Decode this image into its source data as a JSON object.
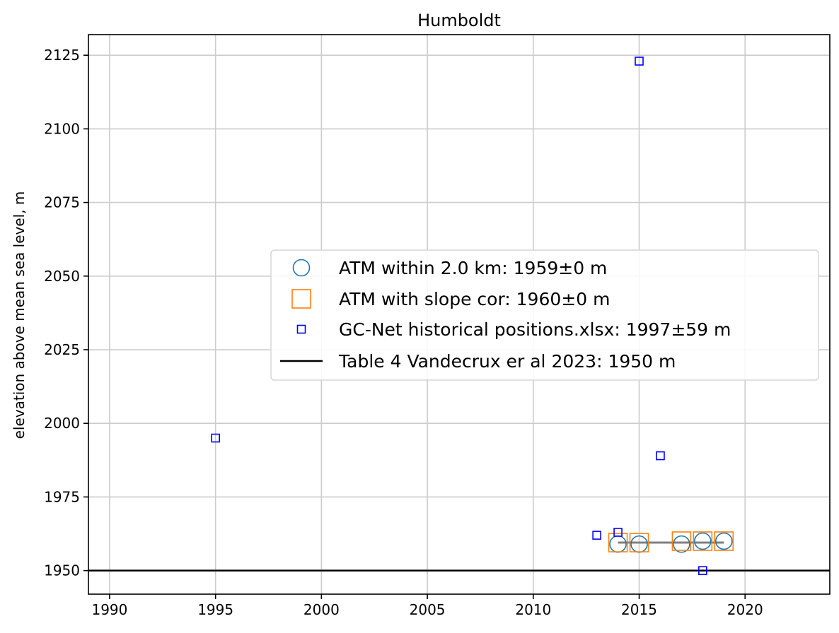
{
  "chart_data": {
    "type": "scatter",
    "title": "Humboldt",
    "xlabel": "",
    "ylabel": "elevation above mean sea level, m",
    "xlim": [
      1989,
      2024
    ],
    "ylim": [
      1942,
      2132
    ],
    "xticks": [
      1990,
      1995,
      2000,
      2005,
      2010,
      2015,
      2020
    ],
    "yticks": [
      1950,
      1975,
      2000,
      2025,
      2050,
      2075,
      2100,
      2125
    ],
    "grid": true,
    "legend_position": "center-right",
    "series": [
      {
        "name": "ATM within 2.0 km: 1959±0 m",
        "marker": "circle",
        "color": "#1f77b4",
        "x": [
          2014,
          2015,
          2017,
          2018,
          2019
        ],
        "y": [
          1959,
          1959,
          1959,
          1960,
          1960
        ]
      },
      {
        "name": "ATM with slope cor: 1960±0 m",
        "marker": "square",
        "color": "#ff7f0e",
        "x": [
          2014,
          2015,
          2017,
          2018,
          2019
        ],
        "y": [
          1959.5,
          1959.5,
          1960,
          1960,
          1960
        ]
      },
      {
        "name": "GC-Net historical positions.xlsx: 1997±59 m",
        "marker": "square-small",
        "color": "#0000ff",
        "x": [
          1995,
          2013,
          2014,
          2015,
          2016,
          2018
        ],
        "y": [
          1995,
          1962,
          1963,
          2123,
          1989,
          1950
        ]
      },
      {
        "name": "Table 4 Vandecrux er al 2023: 1950 m",
        "marker": "hline",
        "color": "#000000",
        "y": 1950
      }
    ],
    "mean_line": {
      "color": "#808080",
      "x": [
        2014,
        2019
      ],
      "y": 1959.5
    }
  }
}
